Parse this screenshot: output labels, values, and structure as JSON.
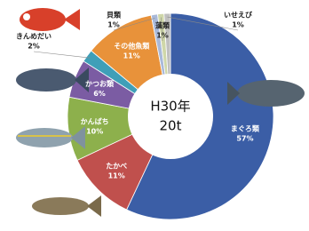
{
  "chart_data": {
    "type": "donut",
    "center_text": [
      "H30年",
      "20t"
    ],
    "categories": [
      "まぐろ類",
      "たかべ",
      "かんぱち",
      "かつお類",
      "きんめだい",
      "その他魚類",
      "貝類",
      "藻類",
      "いせえび"
    ],
    "values": [
      57,
      11,
      10,
      6,
      2,
      11,
      1,
      1,
      1
    ],
    "value_labels": [
      "57%",
      "11%",
      "10%",
      "6%",
      "2%",
      "11%",
      "1%",
      "1%",
      "1%"
    ],
    "colors": [
      "#3b5ea6",
      "#c0504d",
      "#8db04c",
      "#7b5ca3",
      "#3f9fb8",
      "#e8923a",
      "#a9b9d9",
      "#cfd7a9",
      "#bfbfbf"
    ]
  }
}
